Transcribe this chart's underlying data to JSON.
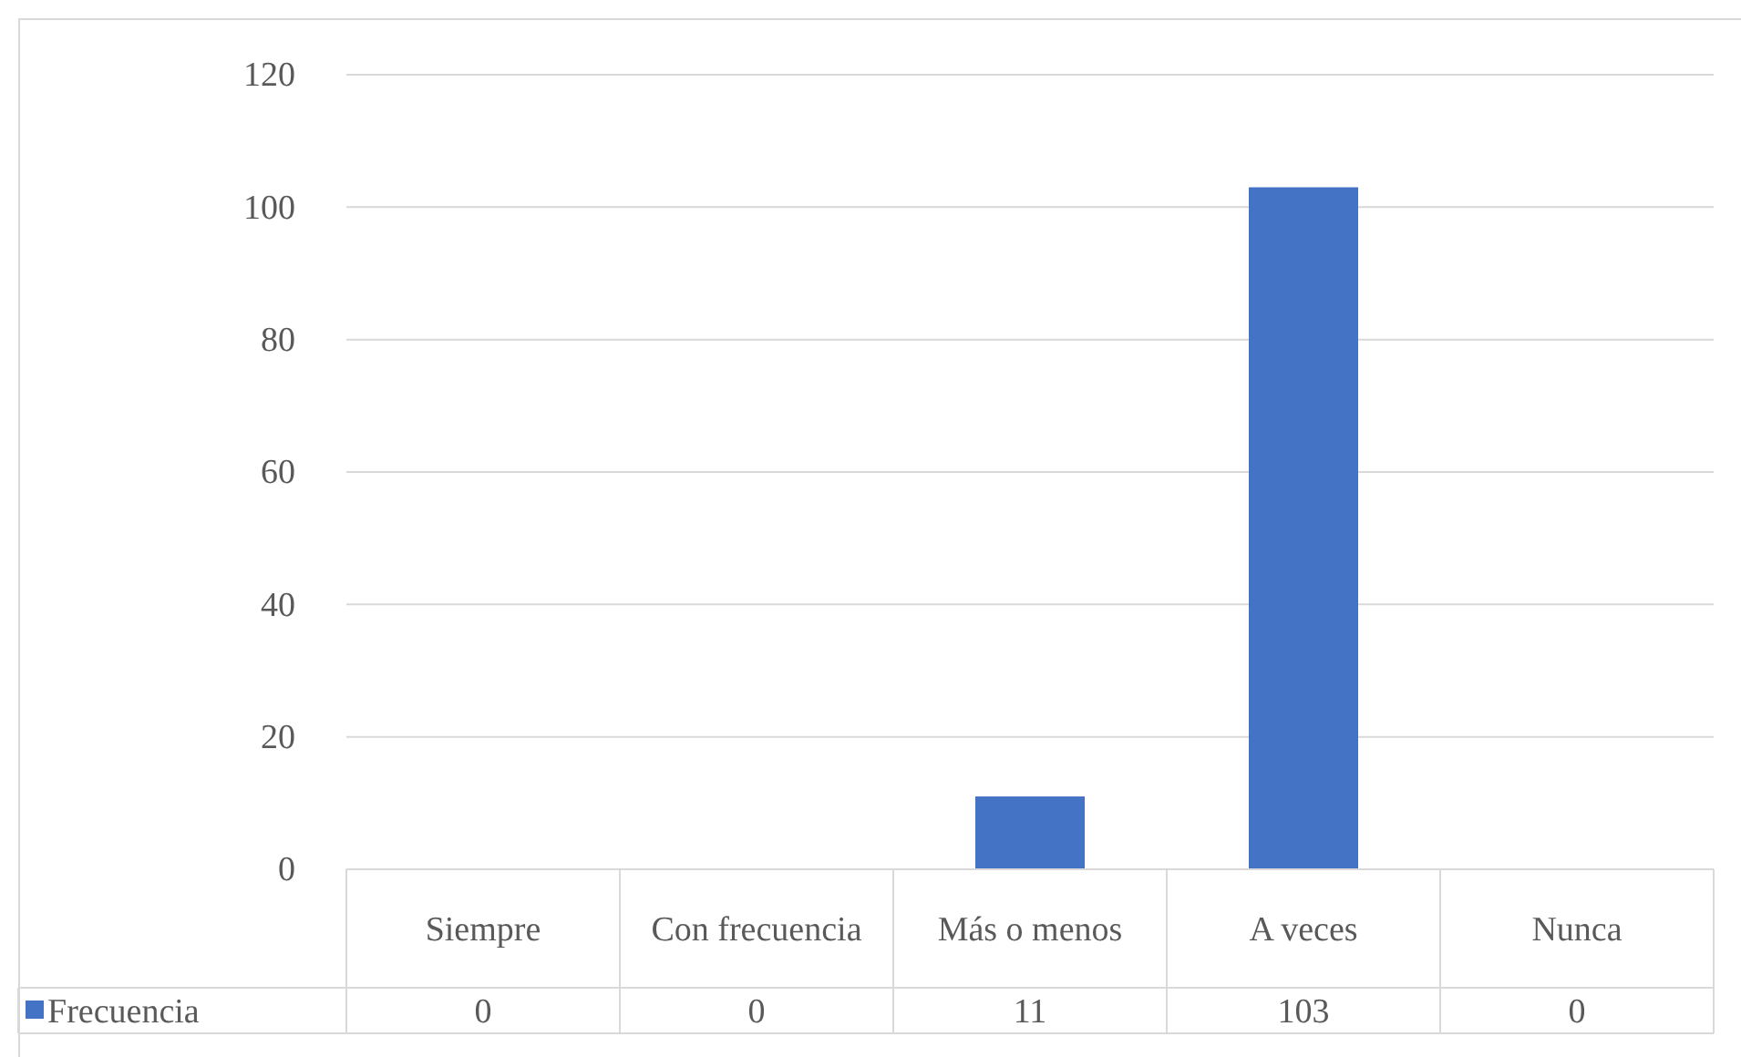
{
  "chart_data": {
    "type": "bar",
    "categories": [
      "Siempre",
      "Con frecuencia",
      "Más o menos",
      "A veces",
      "Nunca"
    ],
    "series": [
      {
        "name": "Frecuencia",
        "color": "#4472c4",
        "values": [
          0,
          0,
          11,
          103,
          0
        ]
      }
    ],
    "ylim": [
      0,
      120
    ],
    "yticks": [
      0,
      20,
      40,
      60,
      80,
      100,
      120
    ],
    "grid": "y",
    "legend": "bottom",
    "data_labels": true
  }
}
